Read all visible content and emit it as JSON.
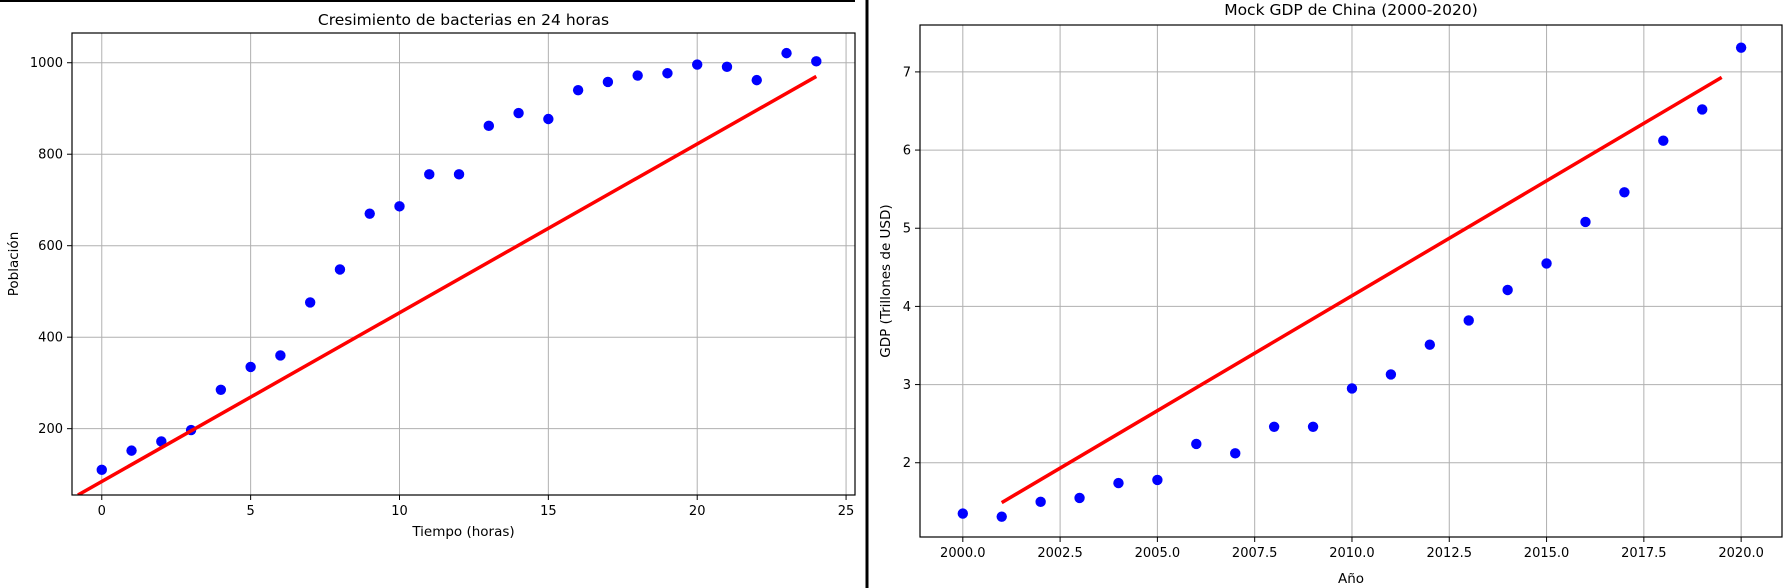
{
  "chart_data": [
    {
      "type": "scatter",
      "title": "Cresimiento de bacterias en  24 horas",
      "xlabel": "Tiempo (horas)",
      "ylabel": "Población",
      "xlim": [
        -1,
        25.3
      ],
      "ylim": [
        55,
        1065
      ],
      "xticks": [
        0,
        5,
        10,
        15,
        20,
        25
      ],
      "yticks": [
        200,
        400,
        600,
        800,
        1000
      ],
      "grid": true,
      "colors": {
        "points": "#0000ff",
        "fit": "#ff0000"
      },
      "series": [
        {
          "kind": "scatter",
          "x": [
            0,
            1,
            2,
            3,
            4,
            5,
            6,
            7,
            8,
            9,
            10,
            11,
            12,
            13,
            14,
            15,
            16,
            17,
            18,
            19,
            20,
            21,
            22,
            23,
            24
          ],
          "y": [
            110,
            152,
            172,
            197,
            285,
            335,
            360,
            476,
            548,
            670,
            686,
            756,
            756,
            862,
            890,
            877,
            940,
            958,
            972,
            977,
            996,
            991,
            962,
            1021,
            1003
          ]
        },
        {
          "kind": "line",
          "x": [
            -0.8,
            24
          ],
          "y": [
            55,
            970
          ]
        }
      ]
    },
    {
      "type": "scatter",
      "title": "Mock GDP de China (2000-2020)",
      "xlabel": "Año",
      "ylabel": "GDP (Trillones de USD)",
      "xlim": [
        1998.9,
        2021.05
      ],
      "ylim": [
        1.05,
        7.6
      ],
      "xticks": [
        2000.0,
        2002.5,
        2005.0,
        2007.5,
        2010.0,
        2012.5,
        2015.0,
        2017.5,
        2020.0
      ],
      "xtick_labels": [
        "2000.0",
        "2002.5",
        "2005.0",
        "2007.5",
        "2010.0",
        "2012.5",
        "2015.0",
        "2017.5",
        "2020.0"
      ],
      "yticks": [
        2,
        3,
        4,
        5,
        6,
        7
      ],
      "grid": true,
      "colors": {
        "points": "#0000ff",
        "fit": "#ff0000"
      },
      "series": [
        {
          "kind": "scatter",
          "x": [
            2000,
            2001,
            2002,
            2003,
            2004,
            2005,
            2006,
            2007,
            2008,
            2009,
            2010,
            2011,
            2012,
            2013,
            2014,
            2015,
            2016,
            2017,
            2018,
            2019,
            2020
          ],
          "y": [
            1.35,
            1.31,
            1.5,
            1.55,
            1.74,
            1.78,
            2.24,
            2.12,
            2.46,
            2.46,
            2.95,
            3.13,
            3.51,
            3.82,
            4.21,
            4.55,
            5.08,
            5.46,
            6.12,
            6.52,
            7.31
          ]
        },
        {
          "kind": "line",
          "x": [
            2001,
            2019.5
          ],
          "y": [
            1.49,
            6.93
          ]
        }
      ]
    }
  ]
}
